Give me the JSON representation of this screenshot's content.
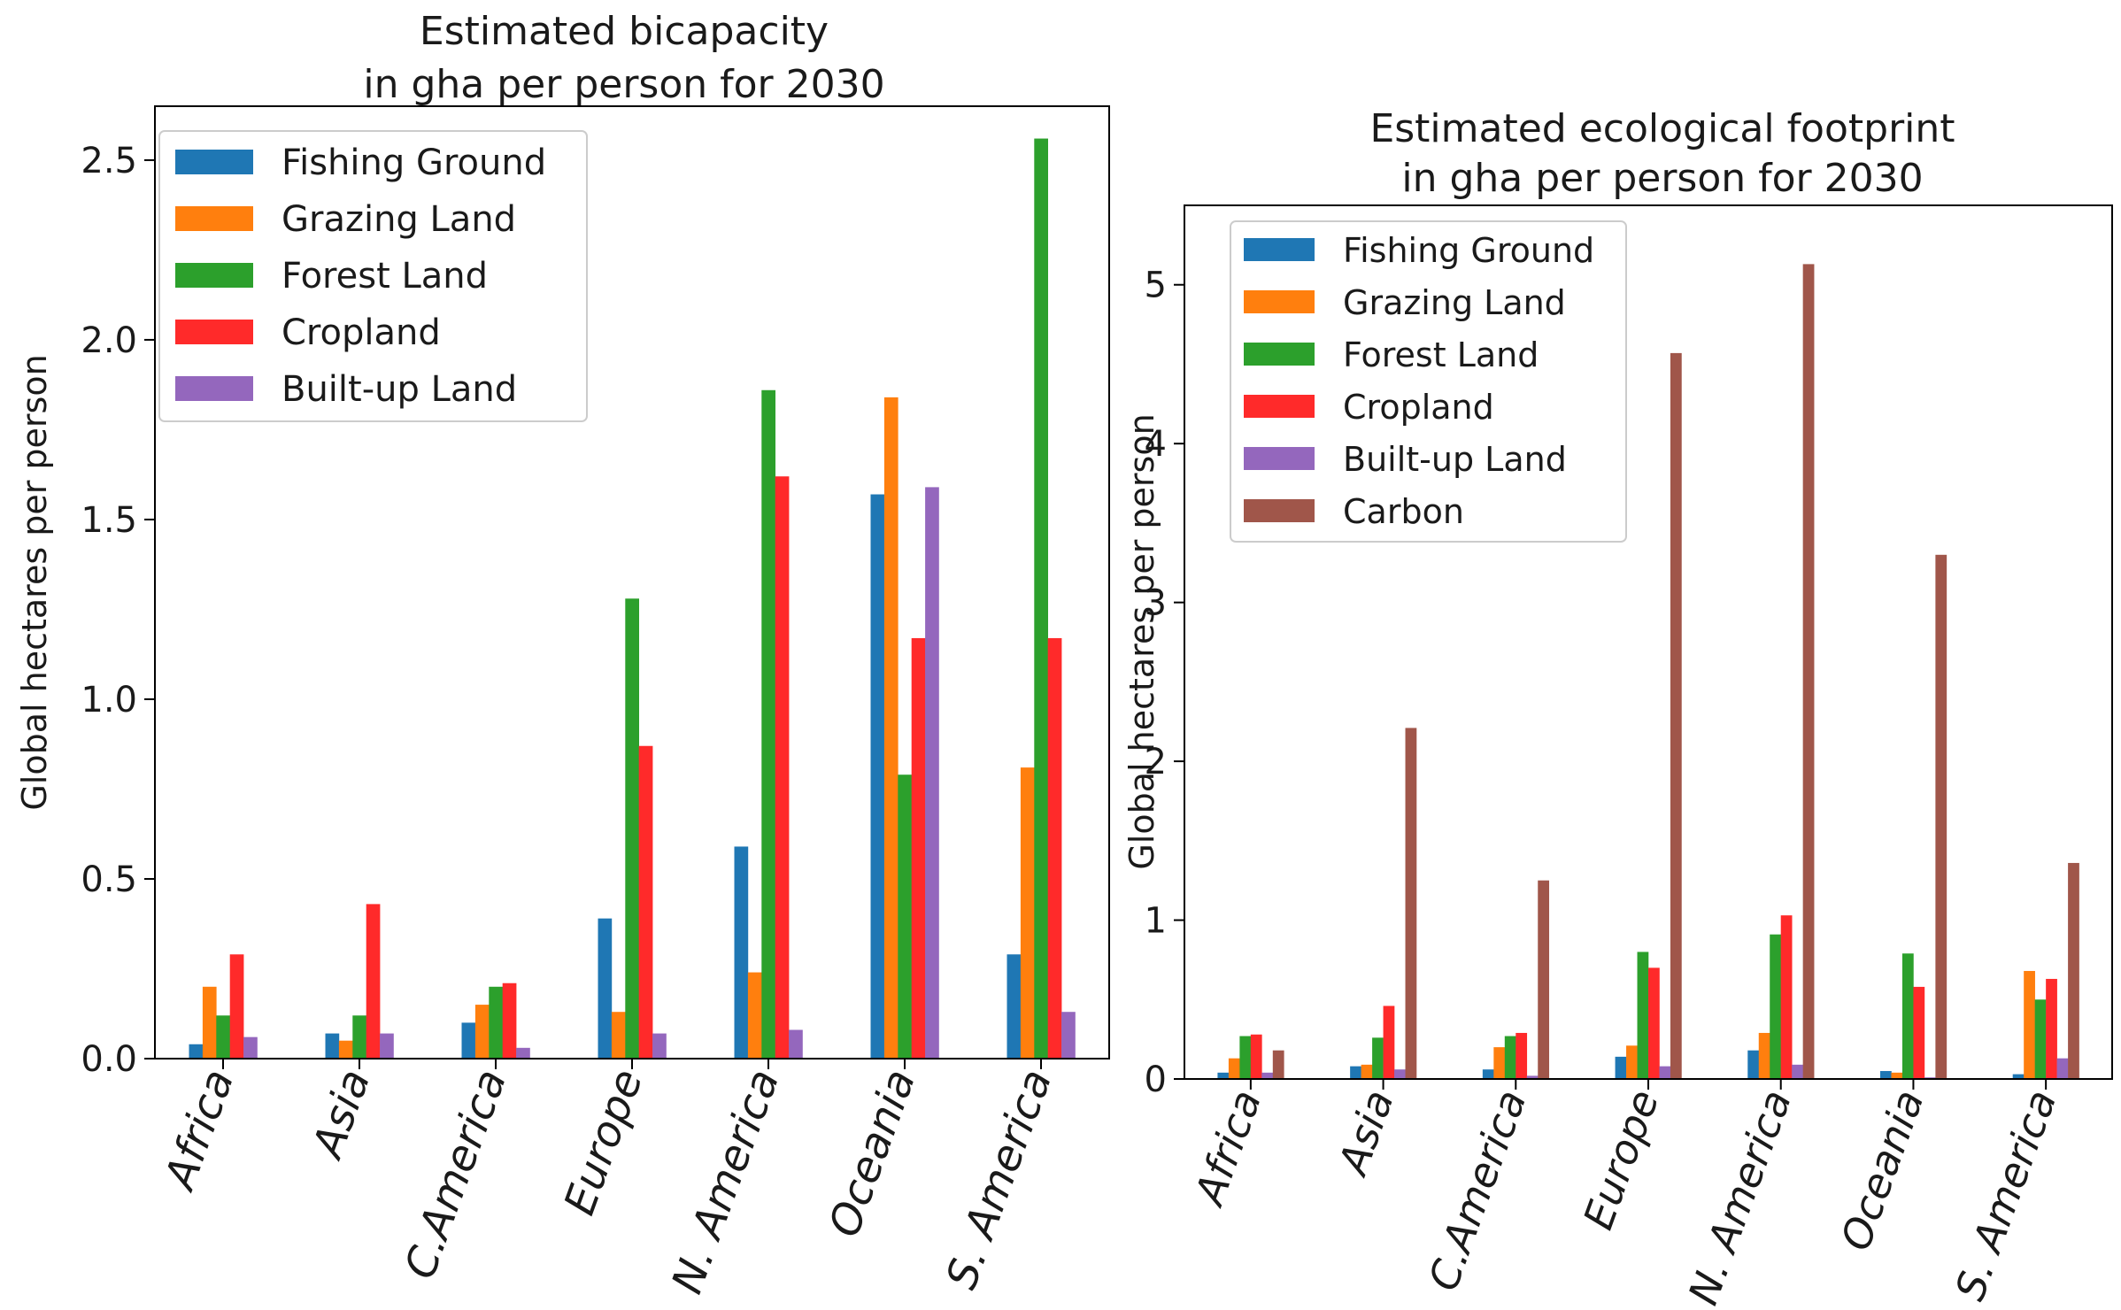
{
  "chart_data": [
    {
      "type": "bar",
      "title_lines": [
        "Estimated bicapacity",
        "in gha per person for 2030"
      ],
      "xlabel": "",
      "ylabel": "Global hectares per person",
      "ylim": [
        0,
        2.65
      ],
      "yticks": [
        "0.0",
        "0.5",
        "1.0",
        "1.5",
        "2.0",
        "2.5"
      ],
      "grid": false,
      "legend_position": "top-left",
      "categories": [
        "Africa",
        "Asia",
        "C.America",
        "Europe",
        "N. America",
        "Oceania",
        "S. America"
      ],
      "series": [
        {
          "name": "Fishing Ground",
          "color": "#1f77b4",
          "values": [
            0.04,
            0.07,
            0.1,
            0.39,
            0.59,
            1.57,
            0.29
          ]
        },
        {
          "name": "Grazing Land",
          "color": "#ff7f0e",
          "values": [
            0.2,
            0.05,
            0.15,
            0.13,
            0.24,
            1.84,
            0.81
          ]
        },
        {
          "name": "Forest Land",
          "color": "#2ca02c",
          "values": [
            0.12,
            0.12,
            0.2,
            1.28,
            1.86,
            0.79,
            2.56
          ]
        },
        {
          "name": "Cropland",
          "color": "#ff2a2a",
          "values": [
            0.29,
            0.43,
            0.21,
            0.87,
            1.62,
            1.17,
            1.17
          ]
        },
        {
          "name": "Built-up Land",
          "color": "#9467bd",
          "values": [
            0.06,
            0.07,
            0.03,
            0.07,
            0.08,
            1.59,
            0.13
          ]
        }
      ]
    },
    {
      "type": "bar",
      "title_lines": [
        "Estimated ecological footprint",
        "in gha per person for 2030"
      ],
      "xlabel": "",
      "ylabel": "Global hectares per person",
      "ylim": [
        0,
        5.5
      ],
      "yticks": [
        "0",
        "1",
        "2",
        "3",
        "4",
        "5"
      ],
      "grid": false,
      "legend_position": "top-left",
      "categories": [
        "Africa",
        "Asia",
        "C.America",
        "Europe",
        "N. America",
        "Oceania",
        "S. America"
      ],
      "series": [
        {
          "name": "Fishing Ground",
          "color": "#1f77b4",
          "values": [
            0.04,
            0.08,
            0.06,
            0.14,
            0.18,
            0.05,
            0.03
          ]
        },
        {
          "name": "Grazing Land",
          "color": "#ff7f0e",
          "values": [
            0.13,
            0.09,
            0.2,
            0.21,
            0.29,
            0.04,
            0.68
          ]
        },
        {
          "name": "Forest Land",
          "color": "#2ca02c",
          "values": [
            0.27,
            0.26,
            0.27,
            0.8,
            0.91,
            0.79,
            0.5
          ]
        },
        {
          "name": "Cropland",
          "color": "#ff2a2a",
          "values": [
            0.28,
            0.46,
            0.29,
            0.7,
            1.03,
            0.58,
            0.63
          ]
        },
        {
          "name": "Built-up Land",
          "color": "#9467bd",
          "values": [
            0.04,
            0.06,
            0.02,
            0.08,
            0.09,
            0.01,
            0.13
          ]
        },
        {
          "name": "Carbon",
          "color": "#a0564a",
          "values": [
            0.18,
            2.21,
            1.25,
            4.57,
            5.13,
            3.3,
            1.36
          ]
        }
      ]
    }
  ]
}
